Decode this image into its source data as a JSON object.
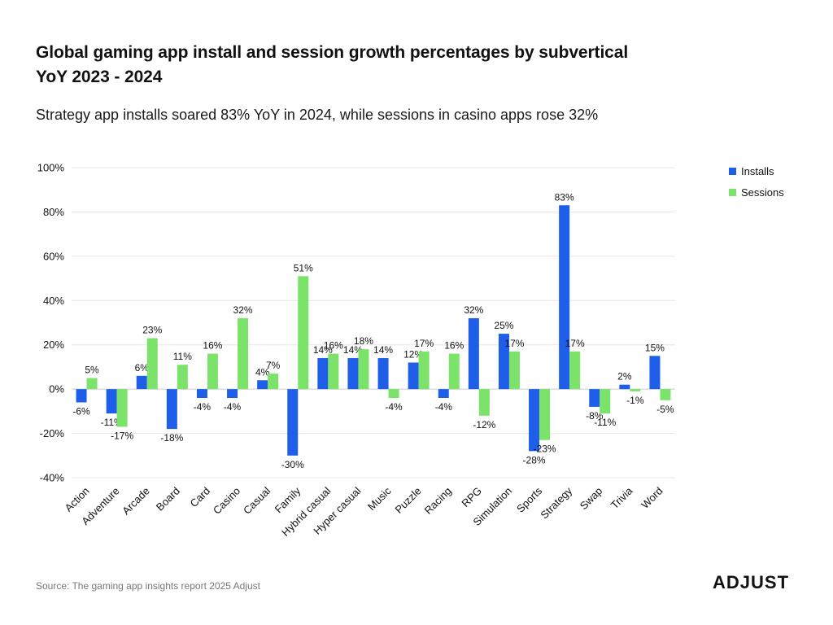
{
  "title": "Global gaming app install and session growth percentages by subvertical YoY 2023 - 2024",
  "subtitle": "Strategy app installs soared 83% YoY in 2024, while sessions in casino apps rose 32%",
  "source": "Source: The gaming app insights report 2025 Adjust",
  "logo_text": "ADJUST",
  "colors": {
    "installs": "#1f5ee8",
    "sessions": "#7be36a",
    "grid": "#e6e6e6",
    "zero": "#cccccc"
  },
  "chart_data": {
    "type": "bar",
    "categories": [
      "Action",
      "Adventure",
      "Arcade",
      "Board",
      "Card",
      "Casino",
      "Casual",
      "Family",
      "Hybrid casual",
      "Hyper casual",
      "Music",
      "Puzzle",
      "Racing",
      "RPG",
      "Simulation",
      "Sports",
      "Strategy",
      "Swap",
      "Trivia",
      "Word"
    ],
    "series": [
      {
        "name": "Installs",
        "values": [
          -6,
          -11,
          6,
          -18,
          -4,
          -4,
          4,
          -30,
          14,
          14,
          14,
          12,
          -4,
          32,
          25,
          -28,
          83,
          -8,
          2,
          15
        ]
      },
      {
        "name": "Sessions",
        "values": [
          5,
          -17,
          23,
          11,
          16,
          32,
          7,
          51,
          16,
          18,
          -4,
          17,
          16,
          -12,
          17,
          -23,
          17,
          -11,
          -1,
          -5
        ]
      }
    ],
    "yticks": [
      "100%",
      "80%",
      "60%",
      "40%",
      "20%",
      "0%",
      "-20%",
      "-40%"
    ],
    "ylim": [
      -40,
      100
    ],
    "grid": true,
    "legend": "top-right",
    "value_suffix": "%"
  }
}
